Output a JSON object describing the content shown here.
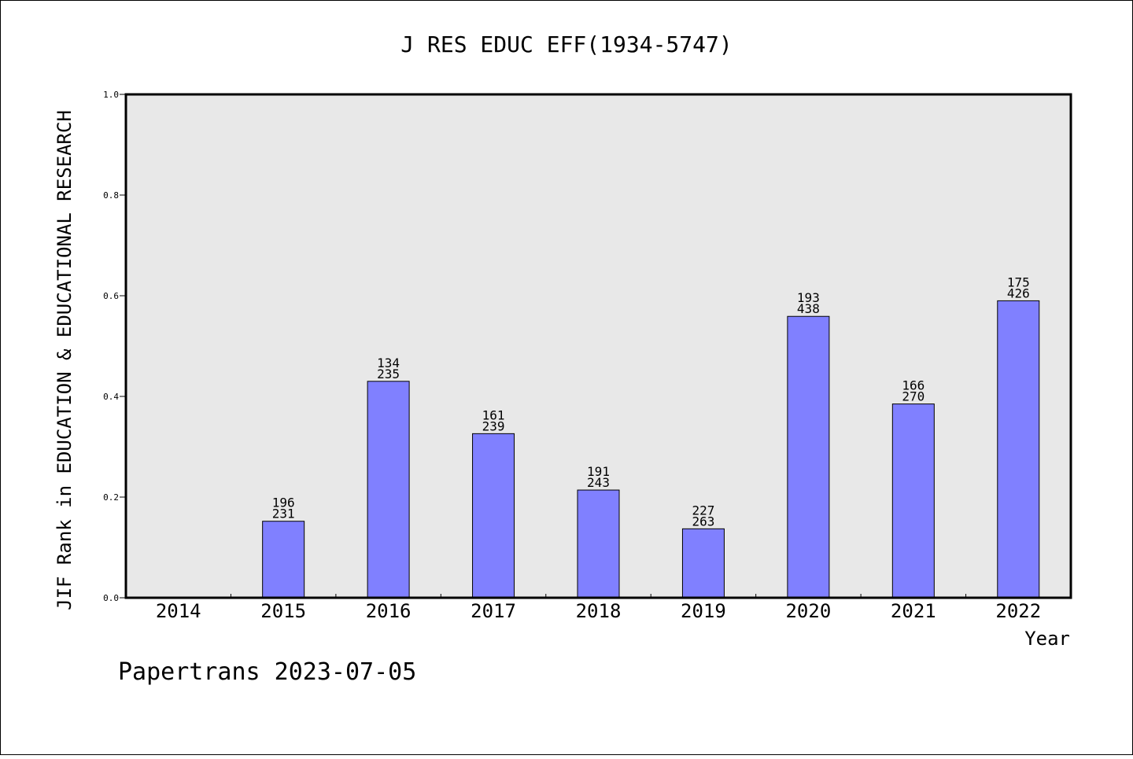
{
  "chart_data": {
    "type": "bar",
    "title": "J RES EDUC EFF(1934-5747)",
    "xlabel": "Year",
    "ylabel": "JIF Rank in EDUCATION & EDUCATIONAL RESEARCH",
    "footer": "Papertrans 2023-07-05",
    "categories": [
      "2014",
      "2015",
      "2016",
      "2017",
      "2018",
      "2019",
      "2020",
      "2021",
      "2022"
    ],
    "values": [
      null,
      0.152,
      0.43,
      0.326,
      0.214,
      0.137,
      0.559,
      0.385,
      0.59
    ],
    "bar_labels": [
      null,
      {
        "rank": "196",
        "total": "231"
      },
      {
        "rank": "134",
        "total": "235"
      },
      {
        "rank": "161",
        "total": "239"
      },
      {
        "rank": "191",
        "total": "243"
      },
      {
        "rank": "227",
        "total": "263"
      },
      {
        "rank": "193",
        "total": "438"
      },
      {
        "rank": "166",
        "total": "270"
      },
      {
        "rank": "175",
        "total": "426"
      }
    ],
    "yticks": [
      "0.0",
      "0.2",
      "0.4",
      "0.6",
      "0.8",
      "1.0"
    ],
    "ylim": [
      0,
      1
    ],
    "grid": false,
    "colors": {
      "bar": "#8080ff",
      "plot_bg": "#e8e8e8",
      "axis": "#000000"
    }
  }
}
